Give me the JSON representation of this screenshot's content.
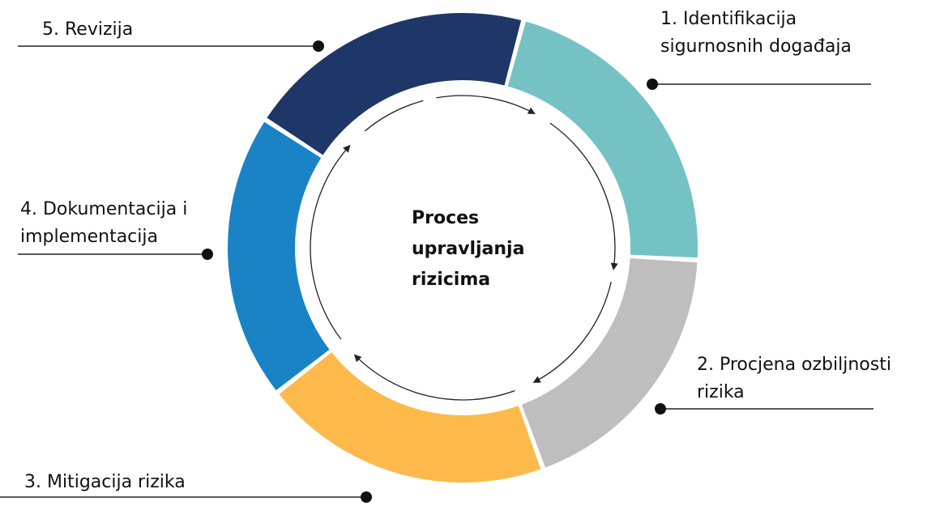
{
  "center": {
    "lines": [
      "Proces",
      "upravljanja",
      "rizicima"
    ]
  },
  "steps": [
    {
      "lines": [
        "1. Identifikacija",
        "sigurnosnih događaja"
      ]
    },
    {
      "lines": [
        "2. Procjena ozbiljnosti",
        "rizika"
      ]
    },
    {
      "lines": [
        "3. Mitigacija rizika"
      ]
    },
    {
      "lines": [
        "4. Dokumentacija i",
        "implementacija"
      ]
    },
    {
      "lines": [
        "5. Revizija"
      ]
    }
  ]
}
